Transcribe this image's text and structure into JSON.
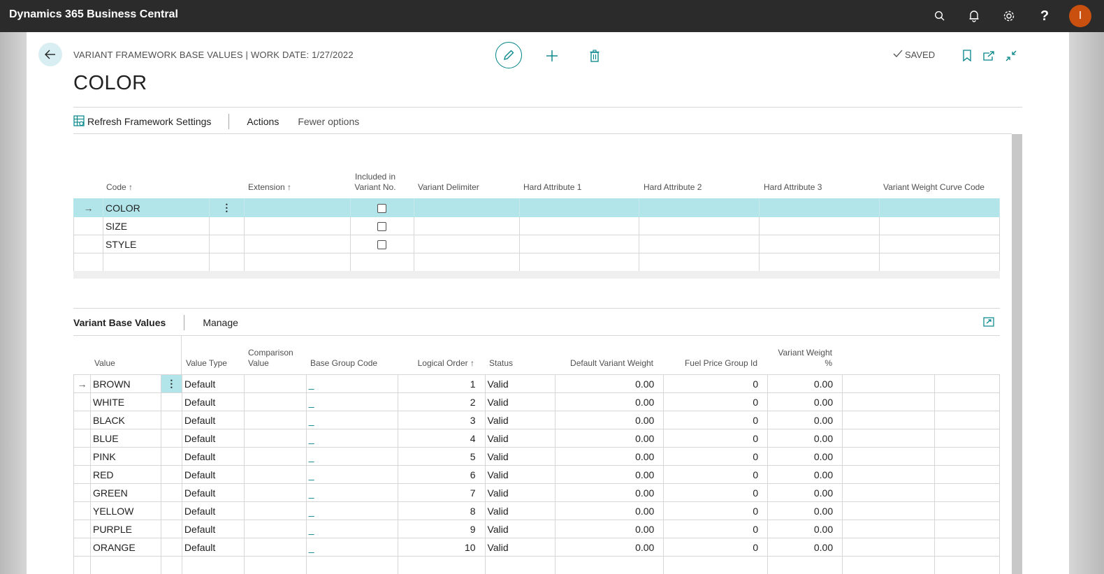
{
  "app": {
    "title": "Dynamics 365 Business Central",
    "user_initial": "I"
  },
  "colors": {
    "accent": "#008489",
    "selected_row": "#b2e5ea",
    "topbar": "#2b2b2b",
    "avatar": "#ca5010"
  },
  "header": {
    "breadcrumb": "VARIANT FRAMEWORK BASE VALUES | WORK DATE: 1/27/2022",
    "title": "COLOR",
    "saved_label": "SAVED"
  },
  "actions": {
    "refresh": "Refresh Framework Settings",
    "actions": "Actions",
    "fewer": "Fewer options"
  },
  "grid1": {
    "columns": {
      "code": "Code",
      "extension": "Extension",
      "included_1": "Included in",
      "included_2": "Variant No.",
      "delimiter": "Variant Delimiter",
      "hard1": "Hard Attribute 1",
      "hard2": "Hard Attribute 2",
      "hard3": "Hard Attribute 3",
      "curve": "Variant Weight Curve Code"
    },
    "rows": [
      {
        "code": "COLOR",
        "included": false
      },
      {
        "code": "SIZE",
        "included": false
      },
      {
        "code": "STYLE",
        "included": false
      }
    ]
  },
  "subpage": {
    "title": "Variant Base Values",
    "manage": "Manage",
    "columns": {
      "value": "Value",
      "value_type": "Value Type",
      "comparison_1": "Comparison",
      "comparison_2": "Value",
      "base_group": "Base Group Code",
      "logical_order": "Logical Order",
      "status": "Status",
      "default_weight": "Default Variant Weight",
      "fuel_price": "Fuel Price Group Id",
      "weight_pct_1": "Variant Weight",
      "weight_pct_2": "%"
    },
    "rows": [
      {
        "value": "BROWN",
        "type": "Default",
        "group": "_",
        "order": "1",
        "status": "Valid",
        "weight": "0.00",
        "fuel": "0",
        "pct": "0.00"
      },
      {
        "value": "WHITE",
        "type": "Default",
        "group": "_",
        "order": "2",
        "status": "Valid",
        "weight": "0.00",
        "fuel": "0",
        "pct": "0.00"
      },
      {
        "value": "BLACK",
        "type": "Default",
        "group": "_",
        "order": "3",
        "status": "Valid",
        "weight": "0.00",
        "fuel": "0",
        "pct": "0.00"
      },
      {
        "value": "BLUE",
        "type": "Default",
        "group": "_",
        "order": "4",
        "status": "Valid",
        "weight": "0.00",
        "fuel": "0",
        "pct": "0.00"
      },
      {
        "value": "PINK",
        "type": "Default",
        "group": "_",
        "order": "5",
        "status": "Valid",
        "weight": "0.00",
        "fuel": "0",
        "pct": "0.00"
      },
      {
        "value": "RED",
        "type": "Default",
        "group": "_",
        "order": "6",
        "status": "Valid",
        "weight": "0.00",
        "fuel": "0",
        "pct": "0.00"
      },
      {
        "value": "GREEN",
        "type": "Default",
        "group": "_",
        "order": "7",
        "status": "Valid",
        "weight": "0.00",
        "fuel": "0",
        "pct": "0.00"
      },
      {
        "value": "YELLOW",
        "type": "Default",
        "group": "_",
        "order": "8",
        "status": "Valid",
        "weight": "0.00",
        "fuel": "0",
        "pct": "0.00"
      },
      {
        "value": "PURPLE",
        "type": "Default",
        "group": "_",
        "order": "9",
        "status": "Valid",
        "weight": "0.00",
        "fuel": "0",
        "pct": "0.00"
      },
      {
        "value": "ORANGE",
        "type": "Default",
        "group": "_",
        "order": "10",
        "status": "Valid",
        "weight": "0.00",
        "fuel": "0",
        "pct": "0.00"
      }
    ]
  }
}
